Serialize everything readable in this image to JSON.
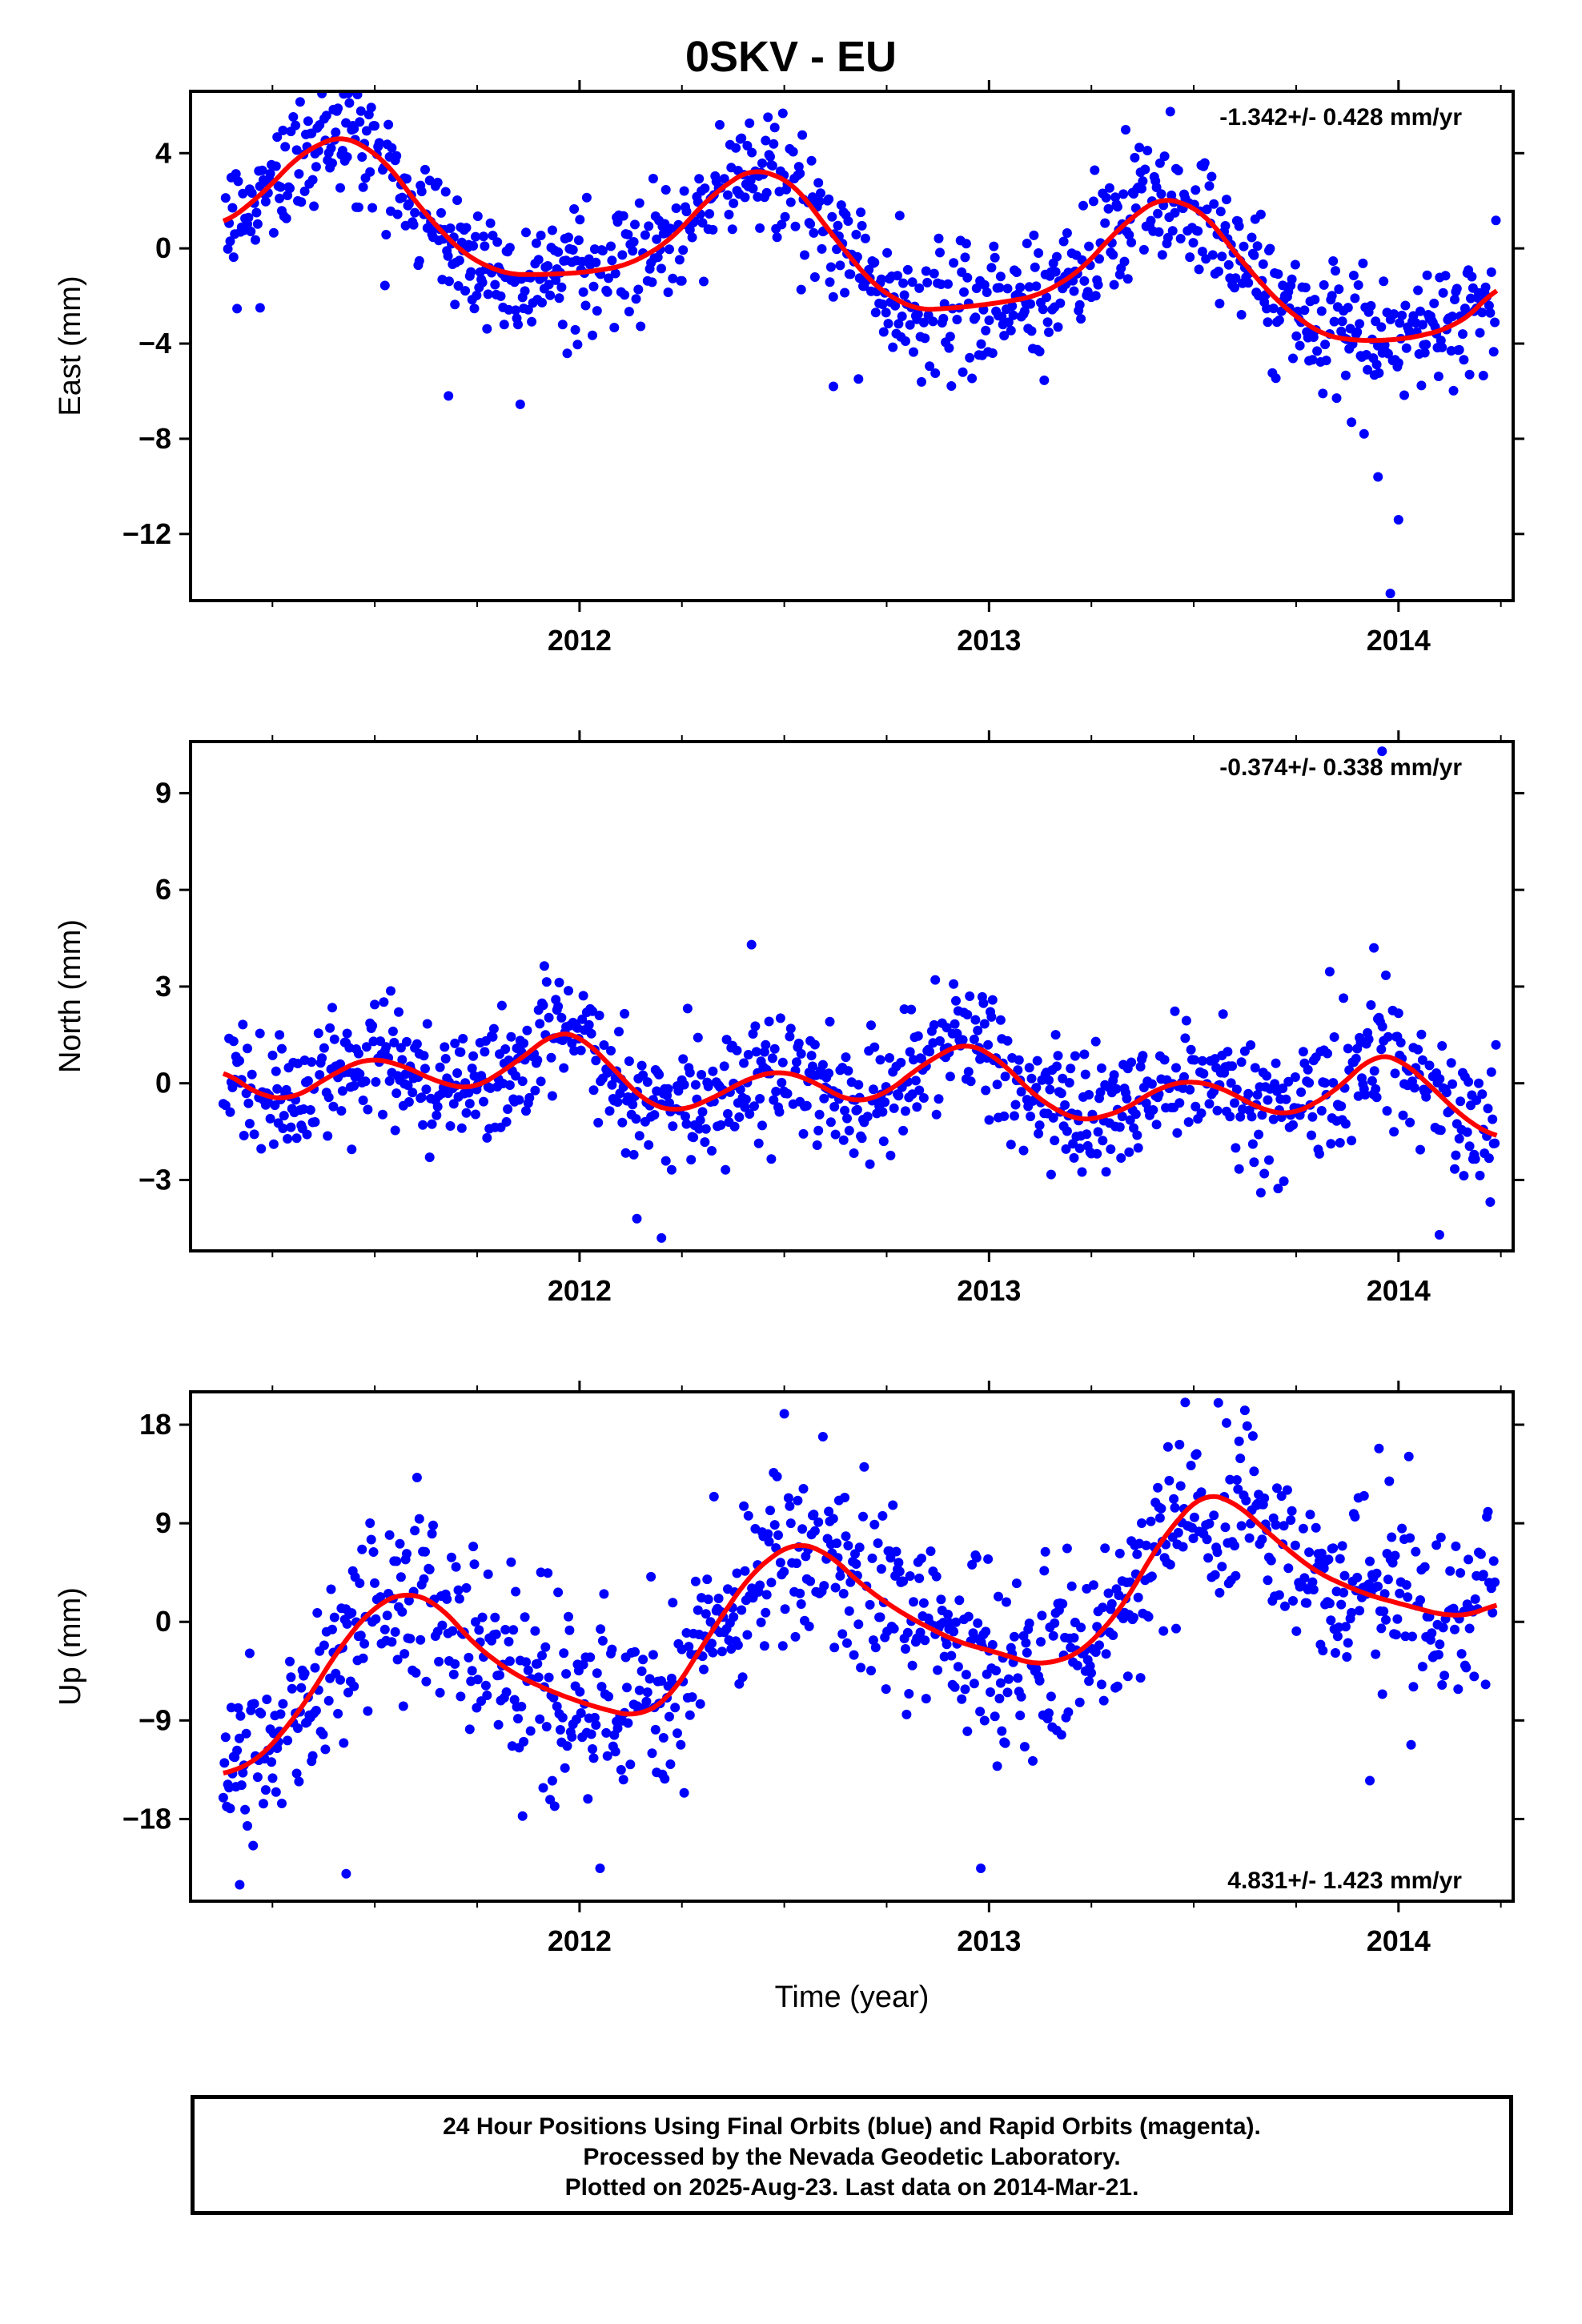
{
  "title": "0SKV - EU",
  "colors": {
    "points": "#0000ff",
    "fit": "#ff0000",
    "axes": "#000000",
    "background": "#ffffff"
  },
  "footer": {
    "line1": "24 Hour Positions Using Final Orbits (blue) and Rapid Orbits (magenta).",
    "line2": "Processed by the Nevada Geodetic Laboratory.",
    "line3": "Plotted on 2025-Aug-23. Last data on 2014-Mar-21."
  },
  "chart_data": [
    {
      "type": "scatter",
      "name": "east",
      "ylabel": "East (mm)",
      "xlabel": "",
      "rate_label": "-1.342+/- 0.428 mm/yr",
      "rate_position": "top-right",
      "xlim": [
        2011.05,
        2014.28
      ],
      "ylim": [
        -14.8,
        6.6
      ],
      "x_ticks": [
        2012,
        2013,
        2014
      ],
      "x_tick_labels": [
        "2012",
        "2013",
        "2014"
      ],
      "y_ticks": [
        4,
        0,
        -4,
        -8,
        -12
      ],
      "y_tick_labels": [
        "4",
        "0",
        "−4",
        "−8",
        "−12"
      ],
      "grid": false,
      "trend": [
        [
          2011.13,
          1.0
        ],
        [
          2011.22,
          2.2
        ],
        [
          2011.32,
          4.0
        ],
        [
          2011.42,
          4.8
        ],
        [
          2011.52,
          3.8
        ],
        [
          2011.62,
          1.5
        ],
        [
          2011.72,
          -0.3
        ],
        [
          2011.82,
          -1.1
        ],
        [
          2011.92,
          -1.1
        ],
        [
          2012.02,
          -1.0
        ],
        [
          2012.12,
          -0.7
        ],
        [
          2012.22,
          0.3
        ],
        [
          2012.32,
          2.2
        ],
        [
          2012.42,
          3.4
        ],
        [
          2012.52,
          2.8
        ],
        [
          2012.62,
          0.5
        ],
        [
          2012.72,
          -1.6
        ],
        [
          2012.82,
          -2.6
        ],
        [
          2012.92,
          -2.5
        ],
        [
          2013.02,
          -2.3
        ],
        [
          2013.12,
          -2.0
        ],
        [
          2013.22,
          -1.0
        ],
        [
          2013.32,
          0.9
        ],
        [
          2013.42,
          2.2
        ],
        [
          2013.52,
          1.6
        ],
        [
          2013.62,
          -0.6
        ],
        [
          2013.72,
          -2.5
        ],
        [
          2013.82,
          -3.7
        ],
        [
          2013.92,
          -3.9
        ],
        [
          2014.02,
          -3.8
        ],
        [
          2014.12,
          -3.4
        ],
        [
          2014.2,
          -2.5
        ],
        [
          2014.24,
          -1.5
        ]
      ],
      "noise_sd": 1.3,
      "outliers": [
        [
          2011.68,
          -6.2
        ],
        [
          2013.95,
          -9.6
        ],
        [
          2014.0,
          -11.4
        ],
        [
          2013.98,
          -14.5
        ],
        [
          2011.22,
          -2.5
        ],
        [
          2012.62,
          -5.8
        ]
      ]
    },
    {
      "type": "scatter",
      "name": "north",
      "ylabel": "North (mm)",
      "xlabel": "",
      "rate_label": "-0.374+/- 0.338 mm/yr",
      "rate_position": "top-right",
      "xlim": [
        2011.05,
        2014.28
      ],
      "ylim": [
        -5.2,
        10.6
      ],
      "x_ticks": [
        2012,
        2013,
        2014
      ],
      "x_tick_labels": [
        "2012",
        "2013",
        "2014"
      ],
      "y_ticks": [
        9,
        6,
        3,
        0,
        -3
      ],
      "y_tick_labels": [
        "9",
        "6",
        "3",
        "0",
        "−3"
      ],
      "grid": false,
      "trend": [
        [
          2011.13,
          0.4
        ],
        [
          2011.22,
          -0.4
        ],
        [
          2011.3,
          -0.5
        ],
        [
          2011.4,
          0.3
        ],
        [
          2011.48,
          0.8
        ],
        [
          2011.56,
          0.6
        ],
        [
          2011.66,
          0.0
        ],
        [
          2011.74,
          -0.2
        ],
        [
          2011.84,
          0.6
        ],
        [
          2011.94,
          1.6
        ],
        [
          2012.0,
          1.5
        ],
        [
          2012.08,
          0.5
        ],
        [
          2012.16,
          -0.6
        ],
        [
          2012.24,
          -0.9
        ],
        [
          2012.32,
          -0.5
        ],
        [
          2012.42,
          0.2
        ],
        [
          2012.5,
          0.4
        ],
        [
          2012.58,
          0.0
        ],
        [
          2012.66,
          -0.6
        ],
        [
          2012.74,
          -0.4
        ],
        [
          2012.84,
          0.6
        ],
        [
          2012.94,
          1.3
        ],
        [
          2013.02,
          0.8
        ],
        [
          2013.12,
          -0.5
        ],
        [
          2013.22,
          -1.2
        ],
        [
          2013.32,
          -0.9
        ],
        [
          2013.42,
          -0.1
        ],
        [
          2013.5,
          0.1
        ],
        [
          2013.58,
          -0.2
        ],
        [
          2013.66,
          -0.8
        ],
        [
          2013.74,
          -1.0
        ],
        [
          2013.84,
          -0.3
        ],
        [
          2013.94,
          0.9
        ],
        [
          2014.0,
          0.8
        ],
        [
          2014.08,
          -0.1
        ],
        [
          2014.16,
          -1.1
        ],
        [
          2014.24,
          -1.7
        ]
      ],
      "noise_sd": 1.0,
      "outliers": [
        [
          2012.42,
          4.3
        ],
        [
          2013.94,
          4.2
        ],
        [
          2013.96,
          10.3
        ],
        [
          2012.14,
          -4.2
        ],
        [
          2012.2,
          -4.8
        ],
        [
          2014.1,
          -4.7
        ]
      ]
    },
    {
      "type": "scatter",
      "name": "up",
      "ylabel": "Up (mm)",
      "xlabel": "Time (year)",
      "rate_label": "4.831+/- 1.423 mm/yr",
      "rate_position": "bottom-right",
      "xlim": [
        2011.05,
        2014.28
      ],
      "ylim": [
        -25.5,
        21.0
      ],
      "x_ticks": [
        2012,
        2013,
        2014
      ],
      "x_tick_labels": [
        "2012",
        "2013",
        "2014"
      ],
      "y_ticks": [
        18,
        9,
        0,
        -9,
        -18
      ],
      "y_tick_labels": [
        "18",
        "9",
        "0",
        "−9",
        "−18"
      ],
      "grid": false,
      "trend": [
        [
          2011.13,
          -14.0
        ],
        [
          2011.22,
          -12.5
        ],
        [
          2011.32,
          -8.0
        ],
        [
          2011.42,
          -2.0
        ],
        [
          2011.5,
          1.5
        ],
        [
          2011.58,
          2.8
        ],
        [
          2011.66,
          1.5
        ],
        [
          2011.74,
          -2.0
        ],
        [
          2011.84,
          -4.8
        ],
        [
          2011.94,
          -6.5
        ],
        [
          2012.04,
          -7.8
        ],
        [
          2012.14,
          -8.7
        ],
        [
          2012.22,
          -7.0
        ],
        [
          2012.32,
          -1.0
        ],
        [
          2012.42,
          4.5
        ],
        [
          2012.52,
          7.3
        ],
        [
          2012.6,
          6.5
        ],
        [
          2012.7,
          3.0
        ],
        [
          2012.8,
          0.5
        ],
        [
          2012.92,
          -1.8
        ],
        [
          2013.02,
          -2.8
        ],
        [
          2013.12,
          -4.0
        ],
        [
          2013.22,
          -3.0
        ],
        [
          2013.32,
          1.0
        ],
        [
          2013.42,
          7.5
        ],
        [
          2013.52,
          11.8
        ],
        [
          2013.6,
          11.0
        ],
        [
          2013.7,
          7.5
        ],
        [
          2013.8,
          4.5
        ],
        [
          2013.92,
          2.5
        ],
        [
          2014.02,
          1.5
        ],
        [
          2014.12,
          0.5
        ],
        [
          2014.2,
          0.8
        ],
        [
          2014.24,
          1.8
        ]
      ],
      "noise_sd": 4.2,
      "outliers": [
        [
          2011.17,
          -24.0
        ],
        [
          2011.43,
          -23.0
        ],
        [
          2012.05,
          -22.5
        ],
        [
          2012.5,
          19.0
        ],
        [
          2013.56,
          20.0
        ],
        [
          2012.98,
          -22.5
        ],
        [
          2013.93,
          -14.5
        ]
      ]
    }
  ]
}
